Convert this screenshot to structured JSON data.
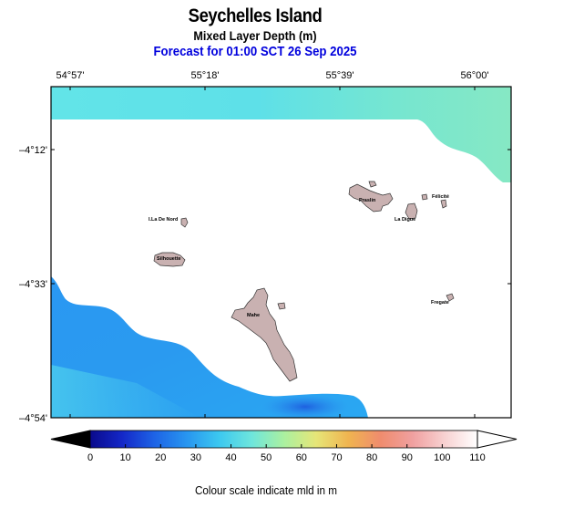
{
  "title": "Seychelles Island",
  "subtitle": "Mixed Layer Depth (m)",
  "forecast": "Forecast for  01:00 SCT 26 Sep 2025",
  "lon_labels": [
    "54°57'",
    "55°18'",
    "55°39'",
    "56°00'"
  ],
  "lat_labels": [
    "–4°12'",
    "–4°33'",
    "–4°54'"
  ],
  "islands": [
    {
      "name": "Praslin"
    },
    {
      "name": "Félicité"
    },
    {
      "name": "La Digue"
    },
    {
      "name": "I.La De Nord"
    },
    {
      "name": "Silhouette"
    },
    {
      "name": "Mahe"
    },
    {
      "name": "Fregate"
    }
  ],
  "colorbar": {
    "ticks": [
      "0",
      "10",
      "20",
      "30",
      "40",
      "50",
      "60",
      "70",
      "80",
      "90",
      "100",
      "110"
    ],
    "colors": [
      "#0a0a8c",
      "#1428c8",
      "#1e64e6",
      "#2896f0",
      "#3cc8f0",
      "#6ee6dc",
      "#aaf0a0",
      "#e6e678",
      "#f0b450",
      "#f08c6e",
      "#f0a0a0",
      "#f8d2d2",
      "#ffffff"
    ]
  },
  "caption": "Colour scale indicate mld in m"
}
